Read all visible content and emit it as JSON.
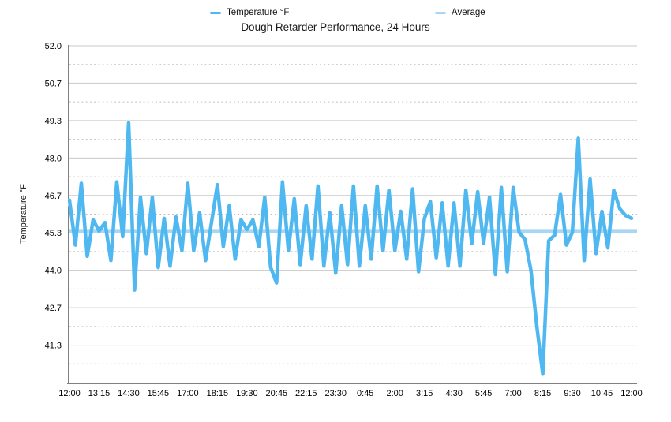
{
  "legend": {
    "items": [
      {
        "label": "Temperature °F",
        "color": "#4fb8f0"
      },
      {
        "label": "Average",
        "color": "#a9d7f3"
      }
    ]
  },
  "chart_data": {
    "type": "line",
    "title": "Dough Retarder Performance, 24 Hours",
    "ylabel": "Temperature °F",
    "xlabel": "",
    "ylim": [
      40.0,
      52.0
    ],
    "grid": {
      "major": "solid",
      "minor": "dotted"
    },
    "legend_position": "top",
    "y_tick_labels": [
      "52.0",
      "50.7",
      "49.3",
      "48.0",
      "46.7",
      "45.3",
      "44.0",
      "42.7",
      "41.3"
    ],
    "y_tick_values": [
      52.0,
      50.667,
      49.333,
      48.0,
      46.667,
      45.333,
      44.0,
      42.667,
      41.333
    ],
    "y_minor_tick_values": [
      51.333,
      50.0,
      48.667,
      47.333,
      46.0,
      44.667,
      43.333,
      42.0,
      40.667
    ],
    "x_tick_labels": [
      "12:00",
      "13:15",
      "14:30",
      "15:45",
      "17:00",
      "18:15",
      "19:30",
      "20:45",
      "22:15",
      "23:30",
      "0:45",
      "2:00",
      "3:15",
      "4:30",
      "5:45",
      "7:00",
      "8:15",
      "9:30",
      "10:45",
      "12:00"
    ],
    "points_per_label": 5,
    "series": [
      {
        "name": "Temperature °F",
        "color": "#4fb8f0",
        "values": [
          46.5,
          44.9,
          47.1,
          44.5,
          45.8,
          45.4,
          45.7,
          44.35,
          47.15,
          45.2,
          49.25,
          43.3,
          46.6,
          44.6,
          46.6,
          44.1,
          45.85,
          44.15,
          45.9,
          44.7,
          47.1,
          44.7,
          46.05,
          44.35,
          45.7,
          47.05,
          44.85,
          46.3,
          44.4,
          45.8,
          45.45,
          45.8,
          44.85,
          46.6,
          44.1,
          43.55,
          47.15,
          44.7,
          46.55,
          44.2,
          46.3,
          44.4,
          47.0,
          44.15,
          46.05,
          43.9,
          46.3,
          44.2,
          47.0,
          44.15,
          46.3,
          44.4,
          47.0,
          44.7,
          46.85,
          44.7,
          46.1,
          44.4,
          46.9,
          43.95,
          45.85,
          46.45,
          44.45,
          46.4,
          44.15,
          46.4,
          44.15,
          46.85,
          44.95,
          46.8,
          44.95,
          46.6,
          43.85,
          46.95,
          43.95,
          46.95,
          45.35,
          45.1,
          44.0,
          42.0,
          40.3,
          45.05,
          45.25,
          46.7,
          44.9,
          45.35,
          48.7,
          44.35,
          47.25,
          44.6,
          46.1,
          44.8,
          46.85,
          46.2,
          45.95,
          45.85
        ]
      },
      {
        "name": "Average",
        "color": "#a9d7f3",
        "type": "constant",
        "value": 45.4
      }
    ]
  }
}
